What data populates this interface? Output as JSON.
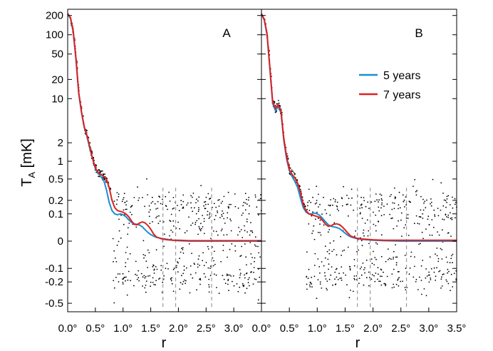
{
  "chart_data": {
    "type": "line",
    "ylabel": "T",
    "ylabel_sub": "A",
    "ylabel_unit": " [mK]",
    "xlabel": "r",
    "x_scale": "linear",
    "y_scale": "symlog",
    "xlim": [
      0,
      3.5
    ],
    "ylim": [
      -0.7,
      250
    ],
    "y_ticks": [
      {
        "value": 200,
        "label": "200"
      },
      {
        "value": 100,
        "label": "100"
      },
      {
        "value": 50,
        "label": "50"
      },
      {
        "value": 20,
        "label": "20"
      },
      {
        "value": 10,
        "label": "10"
      },
      {
        "value": 2,
        "label": "2"
      },
      {
        "value": 1,
        "label": "1"
      },
      {
        "value": 0.5,
        "label": "0.5"
      },
      {
        "value": 0.2,
        "label": "0.2"
      },
      {
        "value": 0.1,
        "label": "0.1"
      },
      {
        "value": 0,
        "label": "0"
      },
      {
        "value": -0.1,
        "label": "-0.1"
      },
      {
        "value": -0.2,
        "label": "-0.2"
      },
      {
        "value": -0.5,
        "label": "-0.5"
      }
    ],
    "legend": {
      "position": "top-right",
      "entries": [
        {
          "name": "5 years",
          "color": "#1a8fd0"
        },
        {
          "name": "7 years",
          "color": "#e02020"
        }
      ]
    },
    "scatter_color": "#000000",
    "panels": [
      {
        "label": "A",
        "x_ticks": [
          {
            "value": 0.0,
            "label": "0.0°"
          },
          {
            "value": 0.5,
            "label": "0.5°"
          },
          {
            "value": 1.0,
            "label": "1.0°"
          },
          {
            "value": 1.5,
            "label": "1.5°"
          },
          {
            "value": 2.0,
            "label": "2.0°"
          },
          {
            "value": 2.5,
            "label": "2.5°"
          },
          {
            "value": 3.0,
            "label": "3.0°"
          }
        ],
        "vlines": [
          1.72,
          1.95,
          2.6
        ],
        "series": [
          {
            "name": "5 years",
            "x": [
              0.0,
              0.05,
              0.1,
              0.15,
              0.2,
              0.25,
              0.3,
              0.35,
              0.4,
              0.45,
              0.5,
              0.55,
              0.6,
              0.65,
              0.7,
              0.75,
              0.8,
              0.85,
              0.9,
              0.95,
              1.0,
              1.05,
              1.1,
              1.15,
              1.2,
              1.25,
              1.3,
              1.35,
              1.4,
              1.45,
              1.5,
              1.55,
              1.6,
              1.7,
              1.8,
              1.9,
              2.0,
              2.2,
              2.5,
              3.0,
              3.5
            ],
            "y": [
              210,
              180,
              110,
              40,
              12,
              6,
              3.5,
              2.5,
              1.6,
              1.1,
              0.75,
              0.62,
              0.55,
              0.48,
              0.32,
              0.18,
              0.12,
              0.1,
              0.095,
              0.1,
              0.095,
              0.085,
              0.07,
              0.058,
              0.052,
              0.05,
              0.047,
              0.04,
              0.03,
              0.022,
              0.016,
              0.012,
              0.009,
              0.006,
              0.004,
              0.002,
              0.001,
              0,
              0,
              0,
              0
            ]
          },
          {
            "name": "7 years",
            "x": [
              0.0,
              0.05,
              0.1,
              0.15,
              0.2,
              0.25,
              0.3,
              0.35,
              0.4,
              0.45,
              0.5,
              0.55,
              0.6,
              0.65,
              0.7,
              0.75,
              0.8,
              0.85,
              0.9,
              0.95,
              1.0,
              1.05,
              1.1,
              1.15,
              1.2,
              1.25,
              1.3,
              1.35,
              1.4,
              1.45,
              1.5,
              1.55,
              1.6,
              1.7,
              1.8,
              1.9,
              2.0,
              2.2,
              2.5,
              3.0,
              3.5
            ],
            "y": [
              215,
              185,
              115,
              42,
              12.5,
              6.2,
              3.6,
              2.6,
              1.7,
              1.1,
              0.78,
              0.65,
              0.6,
              0.55,
              0.5,
              0.35,
              0.2,
              0.14,
              0.12,
              0.115,
              0.11,
              0.1,
              0.085,
              0.065,
              0.05,
              0.048,
              0.055,
              0.06,
              0.055,
              0.045,
              0.032,
              0.018,
              0.01,
              0.005,
              0.003,
              0.002,
              0.002,
              0.001,
              0.001,
              0.001,
              0.001
            ]
          }
        ]
      },
      {
        "label": "B",
        "x_ticks": [
          {
            "value": 0.0,
            "label": "0.0°"
          },
          {
            "value": 0.5,
            "label": "0.5°"
          },
          {
            "value": 1.0,
            "label": "1.0°"
          },
          {
            "value": 1.5,
            "label": "1.5°"
          },
          {
            "value": 2.0,
            "label": "2.0°"
          },
          {
            "value": 2.5,
            "label": "2.5°"
          },
          {
            "value": 3.0,
            "label": "3.0°"
          },
          {
            "value": 3.5,
            "label": "3.5°"
          }
        ],
        "vlines": [
          1.72,
          1.95,
          2.6
        ],
        "series": [
          {
            "name": "5 years",
            "x": [
              0.0,
              0.05,
              0.1,
              0.15,
              0.2,
              0.25,
              0.3,
              0.35,
              0.4,
              0.45,
              0.5,
              0.55,
              0.6,
              0.65,
              0.7,
              0.75,
              0.8,
              0.85,
              0.9,
              0.95,
              1.0,
              1.05,
              1.1,
              1.15,
              1.2,
              1.25,
              1.3,
              1.35,
              1.4,
              1.45,
              1.5,
              1.55,
              1.6,
              1.7,
              1.8,
              1.9,
              2.0,
              2.2,
              2.5,
              3.0,
              3.5
            ],
            "y": [
              210,
              170,
              100,
              30,
              8.5,
              6.5,
              7.5,
              6,
              2.2,
              1.1,
              0.7,
              0.55,
              0.45,
              0.35,
              0.22,
              0.14,
              0.11,
              0.1,
              0.1,
              0.105,
              0.1,
              0.09,
              0.075,
              0.06,
              0.048,
              0.042,
              0.04,
              0.038,
              0.034,
              0.027,
              0.02,
              0.014,
              0.01,
              0.006,
              0.004,
              0.003,
              0.002,
              0.001,
              0,
              0,
              0
            ]
          },
          {
            "name": "7 years",
            "x": [
              0.0,
              0.05,
              0.1,
              0.15,
              0.2,
              0.25,
              0.3,
              0.35,
              0.4,
              0.45,
              0.5,
              0.55,
              0.6,
              0.65,
              0.7,
              0.75,
              0.8,
              0.85,
              0.9,
              0.95,
              1.0,
              1.05,
              1.1,
              1.15,
              1.2,
              1.25,
              1.3,
              1.35,
              1.4,
              1.45,
              1.5,
              1.55,
              1.6,
              1.7,
              1.8,
              1.9,
              2.0,
              2.2,
              2.5,
              3.0,
              3.5
            ],
            "y": [
              215,
              175,
              105,
              32,
              9,
              7,
              8,
              6.5,
              2.4,
              1.2,
              0.72,
              0.6,
              0.52,
              0.42,
              0.28,
              0.16,
              0.12,
              0.1,
              0.095,
              0.09,
              0.085,
              0.08,
              0.065,
              0.05,
              0.042,
              0.045,
              0.05,
              0.052,
              0.048,
              0.04,
              0.03,
              0.02,
              0.012,
              0.007,
              0.005,
              0.004,
              0.003,
              0.002,
              0.002,
              0.002,
              0.002
            ]
          }
        ]
      }
    ]
  }
}
